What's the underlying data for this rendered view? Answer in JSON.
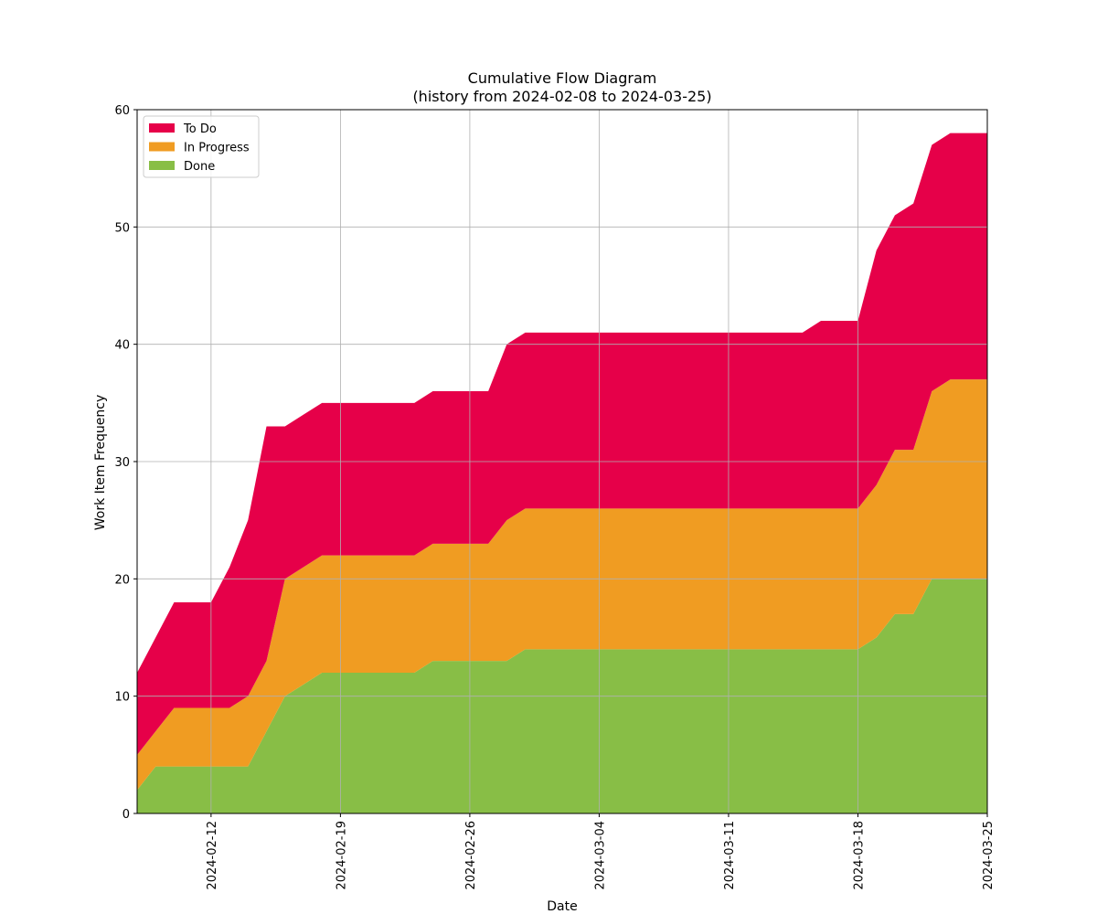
{
  "chart_data": {
    "type": "area",
    "stacked": true,
    "title": "Cumulative Flow Diagram",
    "subtitle": "(history from 2024-02-08 to 2024-03-25)",
    "xlabel": "Date",
    "ylabel": "Work Item Frequency",
    "xlim": [
      "2024-02-08",
      "2024-03-25"
    ],
    "ylim": [
      0,
      60
    ],
    "yticks": [
      0,
      10,
      20,
      30,
      40,
      50,
      60
    ],
    "xticks": [
      "2024-02-12",
      "2024-02-19",
      "2024-02-26",
      "2024-03-04",
      "2024-03-11",
      "2024-03-18",
      "2024-03-25"
    ],
    "grid": true,
    "legend_position": "upper-left",
    "dates": [
      "2024-02-08",
      "2024-02-09",
      "2024-02-10",
      "2024-02-11",
      "2024-02-12",
      "2024-02-13",
      "2024-02-14",
      "2024-02-15",
      "2024-02-16",
      "2024-02-17",
      "2024-02-18",
      "2024-02-19",
      "2024-02-20",
      "2024-02-21",
      "2024-02-22",
      "2024-02-23",
      "2024-02-24",
      "2024-02-25",
      "2024-02-26",
      "2024-02-27",
      "2024-02-28",
      "2024-02-29",
      "2024-03-01",
      "2024-03-02",
      "2024-03-03",
      "2024-03-04",
      "2024-03-05",
      "2024-03-06",
      "2024-03-07",
      "2024-03-08",
      "2024-03-09",
      "2024-03-10",
      "2024-03-11",
      "2024-03-12",
      "2024-03-13",
      "2024-03-14",
      "2024-03-15",
      "2024-03-16",
      "2024-03-17",
      "2024-03-18",
      "2024-03-19",
      "2024-03-20",
      "2024-03-21",
      "2024-03-22",
      "2024-03-23",
      "2024-03-24",
      "2024-03-25"
    ],
    "series": [
      {
        "name": "Done",
        "color": "#88be46",
        "values": [
          2,
          4,
          4,
          4,
          4,
          4,
          4,
          7,
          10,
          11,
          12,
          12,
          12,
          12,
          12,
          12,
          13,
          13,
          13,
          13,
          13,
          14,
          14,
          14,
          14,
          14,
          14,
          14,
          14,
          14,
          14,
          14,
          14,
          14,
          14,
          14,
          14,
          14,
          14,
          14,
          15,
          17,
          17,
          20,
          20,
          20,
          20
        ]
      },
      {
        "name": "In Progress",
        "color": "#f09c22",
        "values": [
          3,
          3,
          5,
          5,
          5,
          5,
          6,
          6,
          10,
          10,
          10,
          10,
          10,
          10,
          10,
          10,
          10,
          10,
          10,
          10,
          12,
          12,
          12,
          12,
          12,
          12,
          12,
          12,
          12,
          12,
          12,
          12,
          12,
          12,
          12,
          12,
          12,
          12,
          12,
          12,
          13,
          14,
          14,
          16,
          17,
          17,
          17
        ]
      },
      {
        "name": "To Do",
        "color": "#e60049",
        "values": [
          7,
          8,
          9,
          9,
          9,
          12,
          15,
          20,
          13,
          13,
          13,
          13,
          13,
          13,
          13,
          13,
          13,
          13,
          13,
          13,
          15,
          15,
          15,
          15,
          15,
          15,
          15,
          15,
          15,
          15,
          15,
          15,
          15,
          15,
          15,
          15,
          15,
          16,
          16,
          16,
          20,
          20,
          21,
          21,
          21,
          21,
          21
        ]
      }
    ]
  }
}
